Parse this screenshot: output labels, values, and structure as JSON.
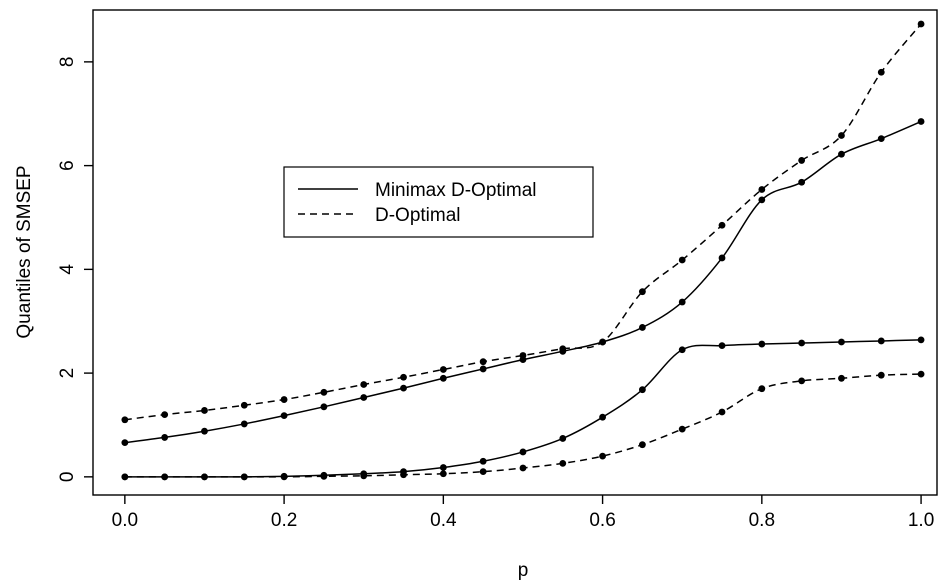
{
  "chart_data": {
    "type": "line",
    "title": "",
    "xlabel": "p",
    "ylabel": "Quantiles of SMSEP",
    "xlim": [
      -0.04,
      1.02
    ],
    "ylim": [
      -0.35,
      9.0
    ],
    "x_ticks": [
      "0.0",
      "0.2",
      "0.4",
      "0.6",
      "0.8",
      "1.0"
    ],
    "y_ticks": [
      "0",
      "2",
      "4",
      "6",
      "8"
    ],
    "grid": false,
    "legend_placement": "upper-left (inset)",
    "x": [
      0.0,
      0.05,
      0.1,
      0.15,
      0.2,
      0.25,
      0.3,
      0.35,
      0.4,
      0.45,
      0.5,
      0.55,
      0.6,
      0.65,
      0.7,
      0.75,
      0.8,
      0.85,
      0.9,
      0.95,
      1.0
    ],
    "series": [
      {
        "name": "Minimax D-Optimal",
        "line_style": "solid",
        "quantile": "upper",
        "values": [
          0.66,
          0.76,
          0.88,
          1.02,
          1.18,
          1.35,
          1.53,
          1.71,
          1.9,
          2.08,
          2.26,
          2.42,
          2.6,
          2.88,
          3.37,
          4.22,
          5.34,
          5.68,
          6.22,
          6.52,
          6.85
        ]
      },
      {
        "name": "D-Optimal",
        "line_style": "dashed",
        "quantile": "upper",
        "values": [
          1.1,
          1.2,
          1.28,
          1.38,
          1.49,
          1.63,
          1.78,
          1.92,
          2.07,
          2.22,
          2.34,
          2.47,
          2.6,
          3.57,
          4.18,
          4.85,
          5.54,
          6.1,
          6.58,
          7.8,
          8.73
        ]
      },
      {
        "name": "Minimax D-Optimal",
        "line_style": "solid",
        "quantile": "lower",
        "values": [
          0.0,
          0.0,
          0.0,
          0.0,
          0.01,
          0.03,
          0.06,
          0.1,
          0.18,
          0.3,
          0.48,
          0.74,
          1.15,
          1.68,
          2.45,
          2.53,
          2.56,
          2.58,
          2.6,
          2.62,
          2.64
        ]
      },
      {
        "name": "D-Optimal",
        "line_style": "dashed",
        "quantile": "lower",
        "values": [
          0.0,
          0.0,
          0.0,
          0.0,
          0.0,
          0.01,
          0.02,
          0.04,
          0.06,
          0.1,
          0.17,
          0.26,
          0.4,
          0.62,
          0.92,
          1.25,
          1.7,
          1.85,
          1.9,
          1.96,
          1.98
        ]
      }
    ],
    "legend": [
      {
        "label": "Minimax D-Optimal",
        "line_style": "solid"
      },
      {
        "label": "D-Optimal",
        "line_style": "dashed"
      }
    ]
  }
}
